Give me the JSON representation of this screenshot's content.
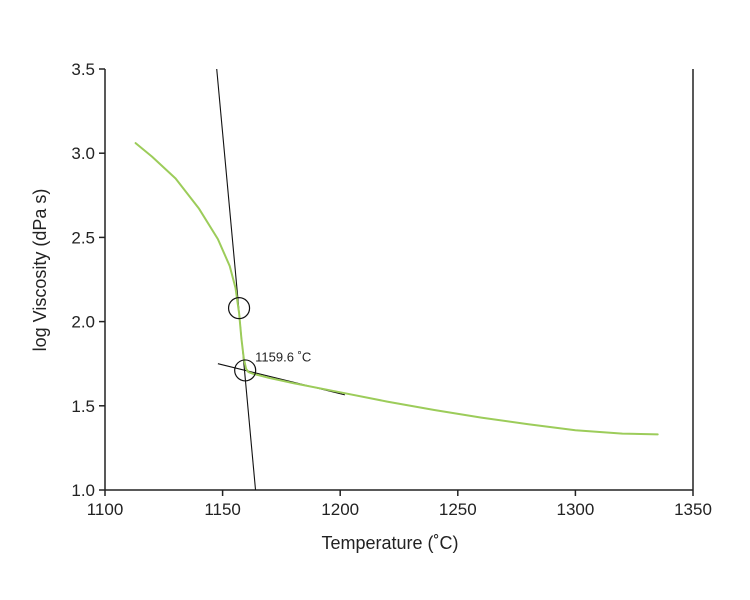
{
  "chart_data": {
    "type": "line",
    "xlabel": "Temperature (˚C)",
    "ylabel": "log Viscosity (dPa s)",
    "xlim": [
      1100,
      1350
    ],
    "ylim": [
      1.0,
      3.5
    ],
    "x_ticks": [
      1100,
      1150,
      1200,
      1250,
      1300,
      1350
    ],
    "y_ticks": [
      1.0,
      1.5,
      2.0,
      2.5,
      3.0,
      3.5
    ],
    "x_tick_labels": [
      "1100",
      "1150",
      "1200",
      "1250",
      "1300",
      "1350"
    ],
    "y_tick_labels": [
      "1.0",
      "1.5",
      "2.0",
      "2.5",
      "3.0",
      "3.5"
    ],
    "grid": false,
    "series": [
      {
        "color": "#9ccc5a",
        "x": [
          1113,
          1120,
          1130,
          1140,
          1148,
          1153,
          1155.5,
          1157,
          1158,
          1159,
          1160,
          1161,
          1163,
          1170,
          1180,
          1200,
          1220,
          1240,
          1260,
          1280,
          1300,
          1320,
          1335
        ],
        "y": [
          3.06,
          2.98,
          2.85,
          2.67,
          2.49,
          2.33,
          2.2,
          2.05,
          1.9,
          1.78,
          1.72,
          1.7,
          1.69,
          1.665,
          1.635,
          1.58,
          1.525,
          1.475,
          1.43,
          1.39,
          1.355,
          1.335,
          1.33
        ]
      }
    ],
    "tangent_lines": [
      {
        "color": "#111111",
        "x": [
          1147.5,
          1164.0
        ],
        "y": [
          3.5,
          1.0
        ]
      },
      {
        "color": "#111111",
        "x": [
          1148.0,
          1202.0
        ],
        "y": [
          1.75,
          1.565
        ]
      }
    ],
    "markers": [
      {
        "x": 1157,
        "y": 2.08
      },
      {
        "x": 1159.6,
        "y": 1.71
      }
    ],
    "annotations": [
      {
        "text": "1159.6 ˚C",
        "x": 1159.6,
        "y": 1.71
      }
    ]
  }
}
